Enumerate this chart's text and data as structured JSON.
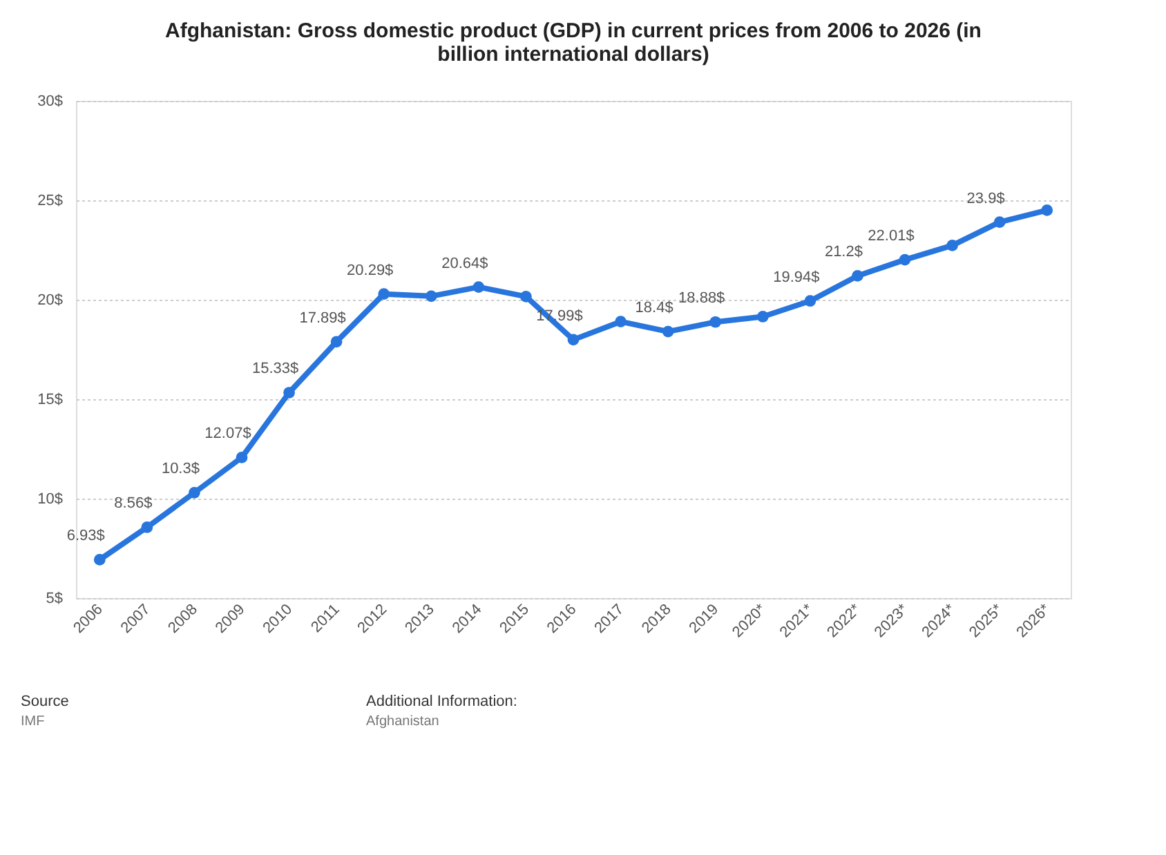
{
  "chart_data": {
    "type": "line",
    "title": "Afghanistan: Gross domestic product (GDP) in current prices from 2006 to 2026 (in billion international dollars)",
    "categories": [
      "2006",
      "2007",
      "2008",
      "2009",
      "2010",
      "2011",
      "2012",
      "2013",
      "2014",
      "2015",
      "2016",
      "2017",
      "2018",
      "2019",
      "2020*",
      "2021*",
      "2022*",
      "2023*",
      "2024*",
      "2025*",
      "2026*"
    ],
    "series": [
      {
        "color": "#2876dd",
        "values": [
          6.93,
          8.56,
          10.3,
          12.07,
          15.33,
          17.89,
          20.29,
          20.18,
          20.64,
          20.16,
          17.99,
          18.9,
          18.4,
          18.88,
          19.15,
          19.94,
          21.2,
          22.01,
          22.73,
          23.9,
          24.5
        ],
        "value_labels": [
          "6.93$",
          "8.56$",
          "10.3$",
          "12.07$",
          "15.33$",
          "17.89$",
          "20.29$",
          null,
          "20.64$",
          null,
          "17.99$",
          null,
          "18.4$",
          "18.88$",
          null,
          "19.94$",
          "21.2$",
          "22.01$",
          null,
          "23.9$",
          null
        ]
      }
    ],
    "ylim": [
      5,
      30
    ],
    "yticks": [
      {
        "value": 5,
        "label": "5$"
      },
      {
        "value": 10,
        "label": "10$"
      },
      {
        "value": 15,
        "label": "15$"
      },
      {
        "value": 20,
        "label": "20$"
      },
      {
        "value": 25,
        "label": "25$"
      },
      {
        "value": 30,
        "label": "30$"
      }
    ],
    "grid": "y",
    "marker": "circle",
    "line_style": "solid",
    "annotations": [
      "Source",
      "IMF",
      "Additional Information:",
      "Afghanistan"
    ]
  }
}
